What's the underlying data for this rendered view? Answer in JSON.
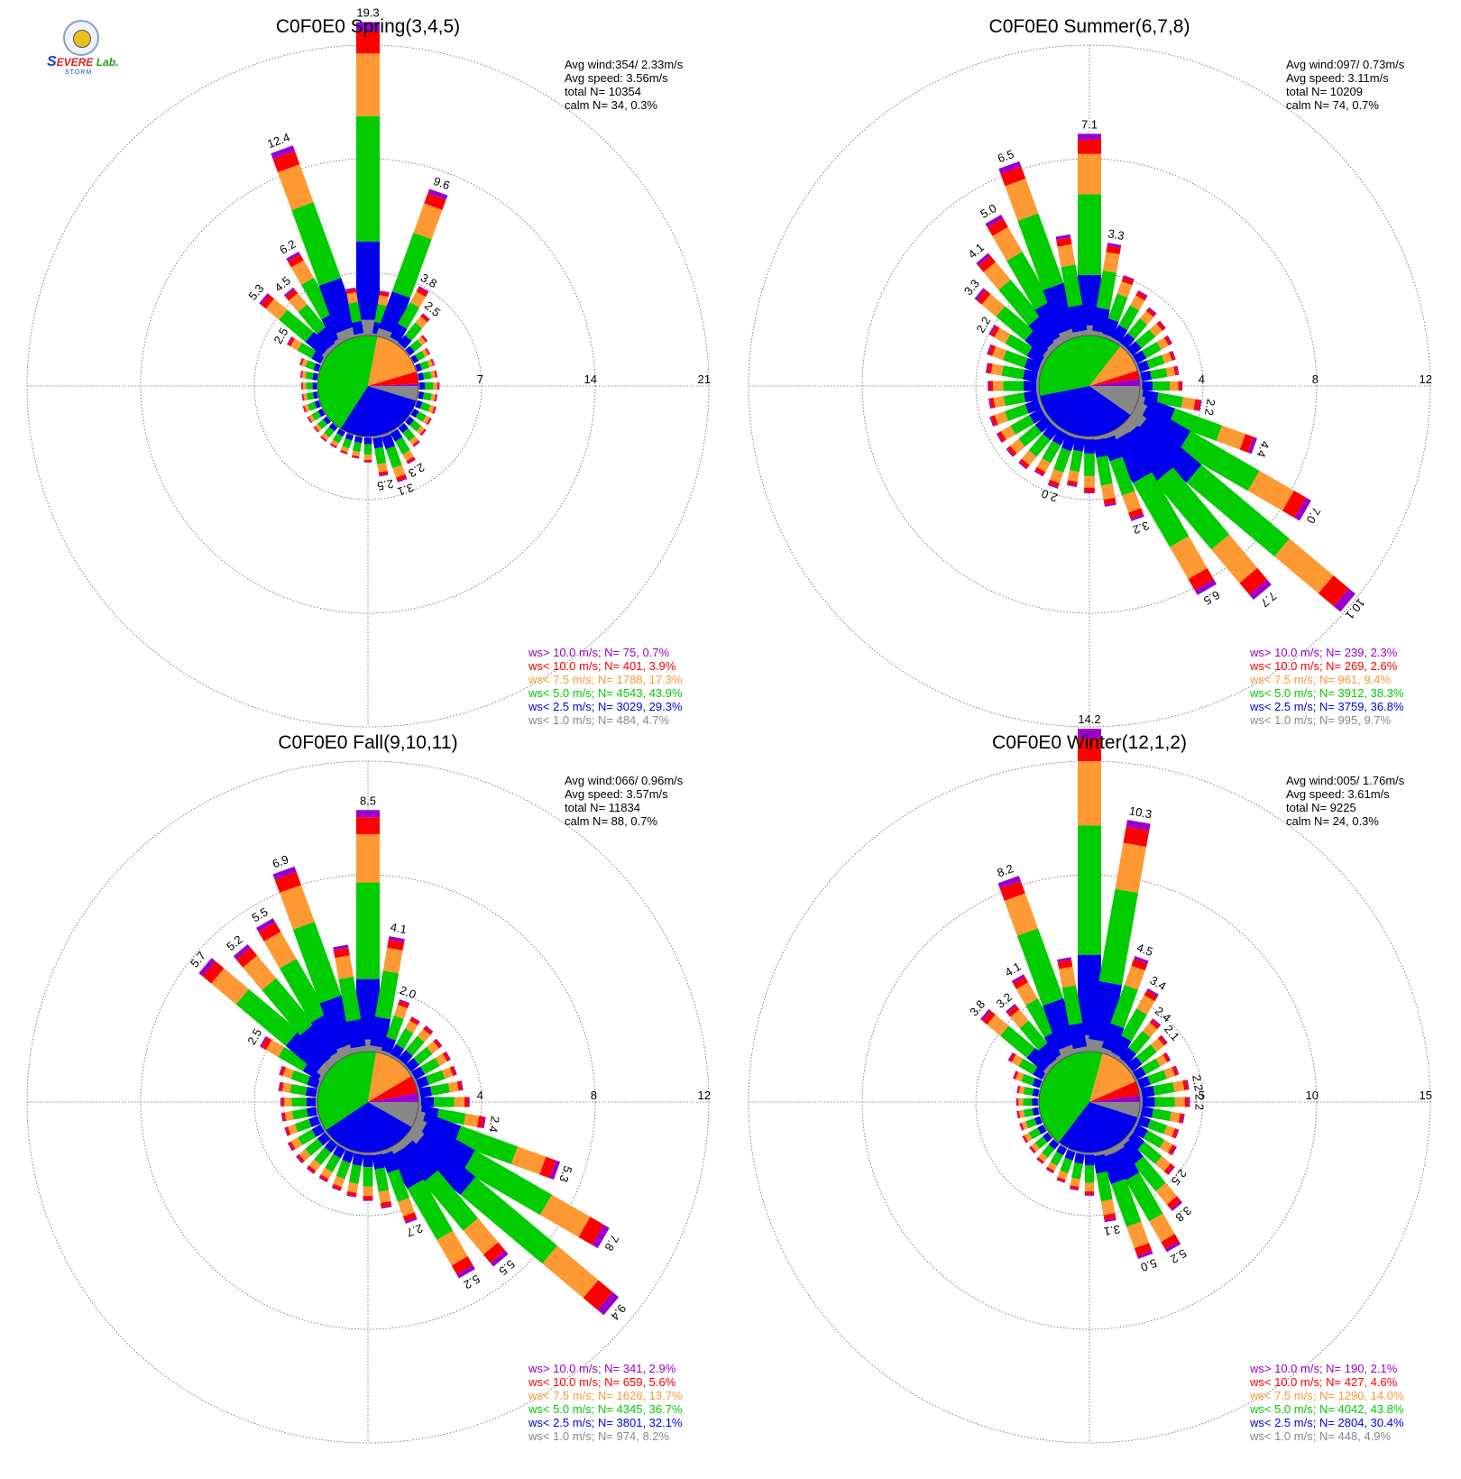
{
  "logo": {
    "text_a": "S",
    "text_b": "EVERE",
    "text_c": "Lab.",
    "text_d": "STORM"
  },
  "chart_data": [
    {
      "type": "windrose",
      "title": "C0F0E0 Spring(3,4,5)",
      "rmax": 21,
      "rings": [
        7,
        14,
        21
      ],
      "stats": [
        "Avg wind:354/ 2.33m/s",
        "Avg speed: 3.56m/s",
        "total N=      10354",
        "calm N=     34,   0.3%"
      ],
      "legend": [
        "ws> 10.0 m/s; N=     75,   0.7%",
        "ws< 10.0 m/s; N=    401,   3.9%",
        "ws<  7.5 m/s; N=   1788, 17.3%",
        "ws<  5.0 m/s; N=   4543, 43.9%",
        "ws<  2.5 m/s; N=   3029, 29.3%",
        "ws<  1.0 m/s; N=    484,   4.7%"
      ],
      "pie": [
        4.7,
        29.3,
        43.9,
        17.3,
        3.9,
        0.7
      ],
      "petals": [
        {
          "dir": 0,
          "total": 19.3,
          "label": "19.3"
        },
        {
          "dir": 10,
          "total": 2.8
        },
        {
          "dir": 20,
          "total": 9.6,
          "label": "9.6"
        },
        {
          "dir": 30,
          "total": 3.8,
          "label": "3.8"
        },
        {
          "dir": 40,
          "total": 2.5,
          "label": "2.5"
        },
        {
          "dir": 50,
          "total": 1.5
        },
        {
          "dir": 60,
          "total": 1.2
        },
        {
          "dir": 70,
          "total": 1.2
        },
        {
          "dir": 80,
          "total": 1.2
        },
        {
          "dir": 90,
          "total": 1.3
        },
        {
          "dir": 100,
          "total": 1.2
        },
        {
          "dir": 110,
          "total": 1.3
        },
        {
          "dir": 120,
          "total": 1.3
        },
        {
          "dir": 130,
          "total": 1.4
        },
        {
          "dir": 140,
          "total": 1.6
        },
        {
          "dir": 150,
          "total": 2.3,
          "label": "2.3"
        },
        {
          "dir": 160,
          "total": 3.1,
          "label": "3.1"
        },
        {
          "dir": 170,
          "total": 2.5,
          "label": "2.5"
        },
        {
          "dir": 180,
          "total": 1.6
        },
        {
          "dir": 190,
          "total": 1.4
        },
        {
          "dir": 200,
          "total": 1.3
        },
        {
          "dir": 210,
          "total": 1.2
        },
        {
          "dir": 220,
          "total": 1.2
        },
        {
          "dir": 230,
          "total": 1.1
        },
        {
          "dir": 240,
          "total": 1.1
        },
        {
          "dir": 250,
          "total": 1.1
        },
        {
          "dir": 260,
          "total": 1.0
        },
        {
          "dir": 270,
          "total": 1.0
        },
        {
          "dir": 280,
          "total": 1.1
        },
        {
          "dir": 290,
          "total": 1.3
        },
        {
          "dir": 300,
          "total": 2.5,
          "label": "2.5"
        },
        {
          "dir": 310,
          "total": 5.3,
          "label": "5.3"
        },
        {
          "dir": 320,
          "total": 4.5,
          "label": "4.5"
        },
        {
          "dir": 330,
          "total": 6.2,
          "label": "6.2"
        },
        {
          "dir": 340,
          "total": 12.4,
          "label": "12.4"
        },
        {
          "dir": 350,
          "total": 3.0
        }
      ]
    },
    {
      "type": "windrose",
      "title": "C0F0E0 Summer(6,7,8)",
      "rmax": 12,
      "rings": [
        4,
        8,
        12
      ],
      "stats": [
        "Avg wind:097/ 0.73m/s",
        "Avg speed: 3.11m/s",
        "total N=      10209",
        "calm N=     74,   0.7%"
      ],
      "legend": [
        "ws> 10.0 m/s; N=    239,   2.3%",
        "ws< 10.0 m/s; N=    269,   2.6%",
        "ws<  7.5 m/s; N=    961,   9.4%",
        "ws<  5.0 m/s; N=   3912, 38.3%",
        "ws<  2.5 m/s; N=   3759, 36.8%",
        "ws<  1.0 m/s; N=    995,   9.7%"
      ],
      "pie": [
        9.7,
        36.8,
        38.3,
        9.4,
        2.6,
        2.3
      ],
      "petals": [
        {
          "dir": 0,
          "total": 7.1,
          "label": "7.1"
        },
        {
          "dir": 10,
          "total": 3.3,
          "label": "3.3"
        },
        {
          "dir": 20,
          "total": 2.3
        },
        {
          "dir": 30,
          "total": 2.0
        },
        {
          "dir": 40,
          "total": 1.7
        },
        {
          "dir": 50,
          "total": 1.6
        },
        {
          "dir": 60,
          "total": 1.5
        },
        {
          "dir": 70,
          "total": 1.4
        },
        {
          "dir": 80,
          "total": 1.4
        },
        {
          "dir": 90,
          "total": 1.5
        },
        {
          "dir": 100,
          "total": 2.2,
          "label": "2.2"
        },
        {
          "dir": 110,
          "total": 4.4,
          "label": "4.4"
        },
        {
          "dir": 120,
          "total": 7.0,
          "label": "7.0"
        },
        {
          "dir": 130,
          "total": 10.1,
          "label": "10.1"
        },
        {
          "dir": 140,
          "total": 7.7,
          "label": "7.7"
        },
        {
          "dir": 150,
          "total": 6.5,
          "label": "6.5"
        },
        {
          "dir": 160,
          "total": 3.2,
          "label": "3.2"
        },
        {
          "dir": 170,
          "total": 2.5
        },
        {
          "dir": 180,
          "total": 2.0
        },
        {
          "dir": 190,
          "total": 1.8
        },
        {
          "dir": 200,
          "total": 2.0,
          "label": "2.0"
        },
        {
          "dir": 210,
          "total": 1.8
        },
        {
          "dir": 220,
          "total": 1.9
        },
        {
          "dir": 230,
          "total": 1.9
        },
        {
          "dir": 240,
          "total": 1.9
        },
        {
          "dir": 250,
          "total": 1.9
        },
        {
          "dir": 260,
          "total": 1.8
        },
        {
          "dir": 270,
          "total": 1.8
        },
        {
          "dir": 280,
          "total": 1.9
        },
        {
          "dir": 290,
          "total": 2.0
        },
        {
          "dir": 300,
          "total": 2.2,
          "label": "2.2"
        },
        {
          "dir": 310,
          "total": 3.3,
          "label": "3.3"
        },
        {
          "dir": 320,
          "total": 4.1,
          "label": "4.1"
        },
        {
          "dir": 330,
          "total": 5.0,
          "label": "5.0"
        },
        {
          "dir": 340,
          "total": 6.5,
          "label": "6.5"
        },
        {
          "dir": 350,
          "total": 3.6
        }
      ]
    },
    {
      "type": "windrose",
      "title": "C0F0E0 Fall(9,10,11)",
      "rmax": 12,
      "rings": [
        4,
        8,
        12
      ],
      "stats": [
        "Avg wind:066/ 0.96m/s",
        "Avg speed: 3.57m/s",
        "total N=      11834",
        "calm N=     88,   0.7%"
      ],
      "legend": [
        "ws> 10.0 m/s; N=    341,   2.9%",
        "ws< 10.0 m/s; N=    659,   5.6%",
        "ws<  7.5 m/s; N=   1626, 13.7%",
        "ws<  5.0 m/s; N=   4345, 36.7%",
        "ws<  2.5 m/s; N=   3801, 32.1%",
        "ws<  1.0 m/s; N=    974,   8.2%"
      ],
      "pie": [
        8.2,
        32.1,
        36.7,
        13.7,
        5.6,
        2.9
      ],
      "petals": [
        {
          "dir": 0,
          "total": 8.5,
          "label": "8.5"
        },
        {
          "dir": 10,
          "total": 4.1,
          "label": "4.1"
        },
        {
          "dir": 20,
          "total": 2.0,
          "label": "2.0"
        },
        {
          "dir": 30,
          "total": 1.6
        },
        {
          "dir": 40,
          "total": 1.6
        },
        {
          "dir": 50,
          "total": 1.5
        },
        {
          "dir": 60,
          "total": 1.5
        },
        {
          "dir": 70,
          "total": 1.5
        },
        {
          "dir": 80,
          "total": 1.6
        },
        {
          "dir": 90,
          "total": 1.8
        },
        {
          "dir": 100,
          "total": 2.4,
          "label": "2.4"
        },
        {
          "dir": 110,
          "total": 5.3,
          "label": "5.3"
        },
        {
          "dir": 120,
          "total": 7.8,
          "label": "7.8"
        },
        {
          "dir": 130,
          "total": 9.4,
          "label": "9.4"
        },
        {
          "dir": 140,
          "total": 5.5,
          "label": "5.5"
        },
        {
          "dir": 150,
          "total": 5.2,
          "label": "5.2"
        },
        {
          "dir": 160,
          "total": 2.7,
          "label": "2.7"
        },
        {
          "dir": 170,
          "total": 2.0
        },
        {
          "dir": 180,
          "total": 1.7
        },
        {
          "dir": 190,
          "total": 1.6
        },
        {
          "dir": 200,
          "total": 1.5
        },
        {
          "dir": 210,
          "total": 1.4
        },
        {
          "dir": 220,
          "total": 1.4
        },
        {
          "dir": 230,
          "total": 1.4
        },
        {
          "dir": 240,
          "total": 1.4
        },
        {
          "dir": 250,
          "total": 1.3
        },
        {
          "dir": 260,
          "total": 1.3
        },
        {
          "dir": 270,
          "total": 1.3
        },
        {
          "dir": 280,
          "total": 1.4
        },
        {
          "dir": 290,
          "total": 1.5
        },
        {
          "dir": 300,
          "total": 2.5,
          "label": "2.5"
        },
        {
          "dir": 310,
          "total": 5.7,
          "label": "5.7"
        },
        {
          "dir": 320,
          "total": 5.2,
          "label": "5.2"
        },
        {
          "dir": 330,
          "total": 5.5,
          "label": "5.5"
        },
        {
          "dir": 340,
          "total": 6.9,
          "label": "6.9"
        },
        {
          "dir": 350,
          "total": 3.8
        }
      ]
    },
    {
      "type": "windrose",
      "title": "C0F0E0 Winter(12,1,2)",
      "rmax": 15,
      "rings": [
        5,
        10,
        15
      ],
      "stats": [
        "Avg wind:005/ 1.76m/s",
        "Avg speed: 3.61m/s",
        "total N=        9225",
        "calm N=     24,   0.3%"
      ],
      "legend": [
        "ws> 10.0 m/s; N=    190,   2.1%",
        "ws< 10.0 m/s; N=    427,   4.6%",
        "ws<  7.5 m/s; N=   1290, 14.0%",
        "ws<  5.0 m/s; N=   4042, 43.8%",
        "ws<  2.5 m/s; N=   2804, 30.4%",
        "ws<  1.0 m/s; N=    448,   4.9%"
      ],
      "pie": [
        4.9,
        30.4,
        43.8,
        14.0,
        4.6,
        2.1
      ],
      "petals": [
        {
          "dir": 0,
          "total": 14.2,
          "label": "14.2"
        },
        {
          "dir": 10,
          "total": 10.3,
          "label": "10.3"
        },
        {
          "dir": 20,
          "total": 4.5,
          "label": "4.5"
        },
        {
          "dir": 30,
          "total": 3.4,
          "label": "3.4"
        },
        {
          "dir": 40,
          "total": 2.4,
          "label": "2.4"
        },
        {
          "dir": 50,
          "total": 2.1,
          "label": "2.1"
        },
        {
          "dir": 60,
          "total": 1.8
        },
        {
          "dir": 70,
          "total": 1.9
        },
        {
          "dir": 80,
          "total": 2.2,
          "label": "2.2"
        },
        {
          "dir": 90,
          "total": 2.2,
          "label": "2.2"
        },
        {
          "dir": 100,
          "total": 2.0
        },
        {
          "dir": 110,
          "total": 1.9
        },
        {
          "dir": 120,
          "total": 2.1
        },
        {
          "dir": 130,
          "total": 2.5,
          "label": "2.5"
        },
        {
          "dir": 140,
          "total": 3.8,
          "label": "3.8"
        },
        {
          "dir": 150,
          "total": 5.2,
          "label": "5.2"
        },
        {
          "dir": 160,
          "total": 5.0,
          "label": "5.0"
        },
        {
          "dir": 170,
          "total": 3.1,
          "label": "3.1"
        },
        {
          "dir": 180,
          "total": 1.9
        },
        {
          "dir": 190,
          "total": 1.7
        },
        {
          "dir": 200,
          "total": 1.5
        },
        {
          "dir": 210,
          "total": 1.3
        },
        {
          "dir": 220,
          "total": 1.2
        },
        {
          "dir": 230,
          "total": 1.1
        },
        {
          "dir": 240,
          "total": 1.1
        },
        {
          "dir": 250,
          "total": 1.0
        },
        {
          "dir": 260,
          "total": 1.0
        },
        {
          "dir": 270,
          "total": 1.0
        },
        {
          "dir": 280,
          "total": 1.0
        },
        {
          "dir": 290,
          "total": 1.3
        },
        {
          "dir": 300,
          "total": 1.8
        },
        {
          "dir": 310,
          "total": 3.8,
          "label": "3.8"
        },
        {
          "dir": 320,
          "total": 3.2,
          "label": "3.2"
        },
        {
          "dir": 330,
          "total": 4.1,
          "label": "4.1"
        },
        {
          "dir": 340,
          "total": 8.2,
          "label": "8.2"
        },
        {
          "dir": 350,
          "total": 4.2
        }
      ]
    }
  ],
  "colors": [
    "#888888",
    "#0000ee",
    "#00cc00",
    "#ff9933",
    "#ff0000",
    "#9900cc"
  ]
}
